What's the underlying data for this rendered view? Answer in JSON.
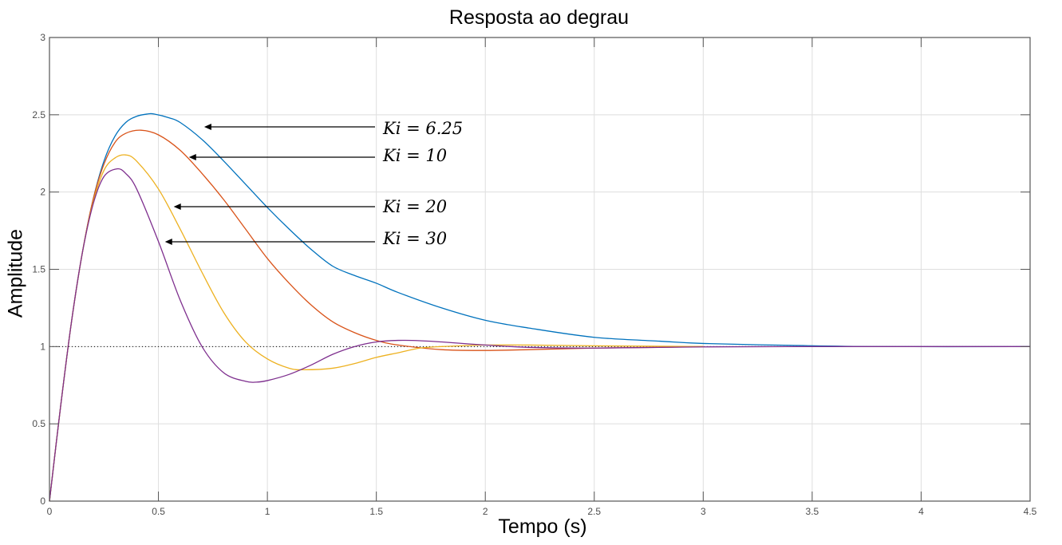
{
  "chart_data": {
    "type": "line",
    "title": "Resposta ao degrau",
    "xlabel": "Tempo (s)",
    "ylabel": "Amplitude",
    "xlim": [
      0,
      4.5
    ],
    "ylim": [
      0,
      3
    ],
    "xticks": [
      "0",
      "0.5",
      "1",
      "1.5",
      "2",
      "2.5",
      "3",
      "3.5",
      "4",
      "4.5"
    ],
    "yticks": [
      "0",
      "0.5",
      "1",
      "1.5",
      "2",
      "2.5",
      "3"
    ],
    "grid": true,
    "reference_line": {
      "y": 1,
      "style": "dotted"
    },
    "series": [
      {
        "name": "Ki = 6.25",
        "color": "#0072BD",
        "x": [
          0,
          0.05,
          0.1,
          0.15,
          0.2,
          0.25,
          0.3,
          0.35,
          0.4,
          0.45,
          0.48,
          0.55,
          0.6,
          0.7,
          0.8,
          0.9,
          1.0,
          1.1,
          1.2,
          1.3,
          1.4,
          1.5,
          1.6,
          1.8,
          2.0,
          2.2,
          2.5,
          2.8,
          3.0,
          3.4,
          3.8,
          4.5
        ],
        "y": [
          0,
          0.6,
          1.15,
          1.6,
          1.95,
          2.2,
          2.36,
          2.45,
          2.49,
          2.505,
          2.505,
          2.48,
          2.45,
          2.34,
          2.2,
          2.05,
          1.9,
          1.76,
          1.63,
          1.52,
          1.46,
          1.41,
          1.35,
          1.25,
          1.17,
          1.12,
          1.06,
          1.035,
          1.02,
          1.008,
          1.0,
          1.0
        ]
      },
      {
        "name": "Ki = 10",
        "color": "#D95319",
        "x": [
          0,
          0.05,
          0.1,
          0.15,
          0.2,
          0.25,
          0.3,
          0.35,
          0.42,
          0.5,
          0.6,
          0.7,
          0.8,
          0.9,
          1.0,
          1.1,
          1.2,
          1.3,
          1.4,
          1.5,
          1.6,
          1.8,
          2.0,
          2.2,
          2.5,
          2.8,
          3.0
        ],
        "y": [
          0,
          0.6,
          1.15,
          1.6,
          1.95,
          2.18,
          2.32,
          2.38,
          2.4,
          2.37,
          2.27,
          2.12,
          1.95,
          1.76,
          1.57,
          1.41,
          1.27,
          1.16,
          1.09,
          1.04,
          1.01,
          0.98,
          0.975,
          0.98,
          0.99,
          0.995,
          1.0
        ]
      },
      {
        "name": "Ki = 20",
        "color": "#EDB120",
        "x": [
          0,
          0.05,
          0.1,
          0.15,
          0.2,
          0.25,
          0.3,
          0.35,
          0.4,
          0.5,
          0.6,
          0.7,
          0.8,
          0.9,
          1.0,
          1.1,
          1.17,
          1.3,
          1.4,
          1.5,
          1.6,
          1.7,
          1.8,
          2.0,
          2.2,
          2.5,
          3.0
        ],
        "y": [
          0,
          0.6,
          1.15,
          1.6,
          1.93,
          2.14,
          2.22,
          2.24,
          2.2,
          2.02,
          1.76,
          1.48,
          1.22,
          1.03,
          0.92,
          0.86,
          0.85,
          0.86,
          0.89,
          0.93,
          0.96,
          0.99,
          1.0,
          1.01,
          1.01,
          1.005,
          1.0
        ]
      },
      {
        "name": "Ki = 30",
        "color": "#7E2F8E",
        "x": [
          0,
          0.05,
          0.1,
          0.15,
          0.2,
          0.25,
          0.31,
          0.35,
          0.4,
          0.5,
          0.6,
          0.7,
          0.8,
          0.9,
          0.95,
          1.0,
          1.1,
          1.2,
          1.3,
          1.4,
          1.5,
          1.6,
          1.7,
          1.8,
          2.0,
          2.2,
          2.5,
          3.0,
          3.5,
          4.0,
          4.5
        ],
        "y": [
          0,
          0.6,
          1.15,
          1.6,
          1.92,
          2.1,
          2.15,
          2.12,
          2.02,
          1.68,
          1.3,
          1.0,
          0.83,
          0.775,
          0.77,
          0.78,
          0.82,
          0.88,
          0.95,
          1.0,
          1.03,
          1.04,
          1.038,
          1.03,
          1.01,
          0.995,
          0.99,
          0.998,
          1.0,
          1.0,
          1.0
        ]
      }
    ],
    "annotations": [
      {
        "text": "Ki = 6.25",
        "arrow_to": [
          0.71,
          2.43
        ]
      },
      {
        "text": "Ki = 10",
        "arrow_to": [
          0.64,
          2.23
        ]
      },
      {
        "text": "Ki = 20",
        "arrow_to": [
          0.57,
          1.9
        ]
      },
      {
        "text": "Ki = 30",
        "arrow_to": [
          0.53,
          1.67
        ]
      }
    ]
  }
}
